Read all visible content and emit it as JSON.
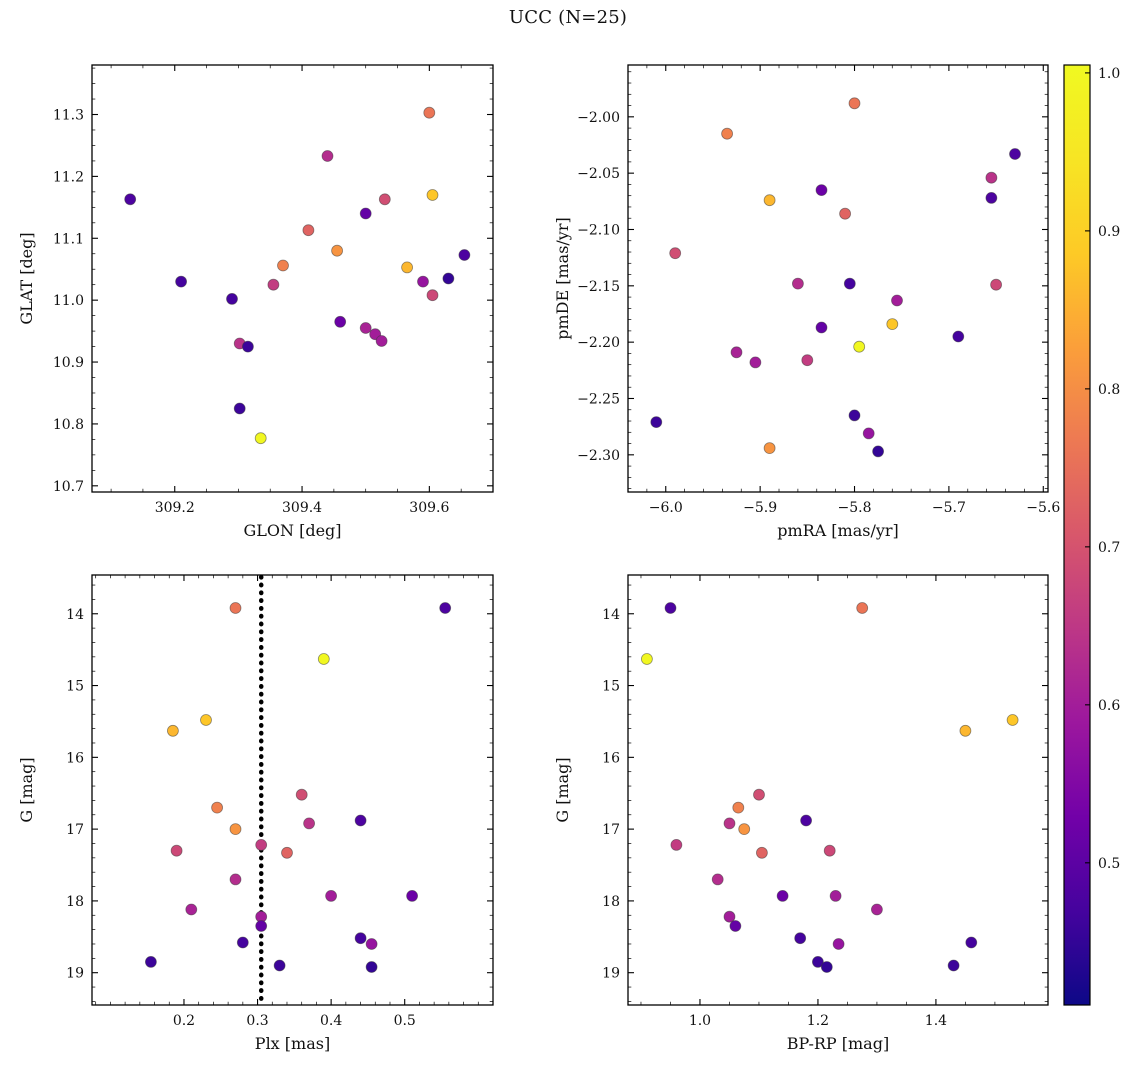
{
  "title": "UCC (N=25)",
  "chart_data": {
    "type": "scatter",
    "figure_title": "UCC (N=25)",
    "n_members": 25,
    "grid": "2x2",
    "colormap": "plasma",
    "color_field": "prob",
    "color_vmin": 0.41,
    "color_vmax": 1.005,
    "colorbar_position": "right",
    "colorbar_ticks": [
      "1.0",
      "0.9",
      "0.8",
      "0.7",
      "0.6",
      "0.5"
    ],
    "colorbar_tick_values": [
      1.0,
      0.9,
      0.8,
      0.7,
      0.6,
      0.5
    ],
    "panels": [
      {
        "id": "glon_glat",
        "xlabel": "GLON [deg]",
        "ylabel": "GLAT [deg]",
        "x_field": "glon",
        "y_field": "glat",
        "xlim": [
          309.07,
          309.7
        ],
        "ylim": [
          10.69,
          11.38
        ],
        "invert_y": false,
        "xticks": [
          309.2,
          309.4,
          309.6
        ],
        "xtick_labels": [
          "309.2",
          "309.4",
          "309.6"
        ],
        "yticks": [
          10.7,
          10.8,
          10.9,
          11.0,
          11.1,
          11.2,
          11.3
        ],
        "ytick_labels": [
          "10.7",
          "10.8",
          "10.9",
          "11.0",
          "11.1",
          "11.2",
          "11.3"
        ],
        "x_minor_step": 0.05,
        "y_minor_step": 0.025
      },
      {
        "id": "pm",
        "xlabel": "pmRA [mas/yr]",
        "ylabel": "pmDE [mas/yr]",
        "x_field": "pmra",
        "y_field": "pmde",
        "xlim": [
          -6.04,
          -5.595
        ],
        "ylim": [
          -2.333,
          -1.954
        ],
        "invert_y": false,
        "xticks": [
          -6.0,
          -5.9,
          -5.8,
          -5.7,
          -5.6
        ],
        "xtick_labels": [
          "−6.0",
          "−5.9",
          "−5.8",
          "−5.7",
          "−5.6"
        ],
        "yticks": [
          -2.3,
          -2.25,
          -2.2,
          -2.15,
          -2.1,
          -2.05,
          -2.0
        ],
        "ytick_labels": [
          "−2.30",
          "−2.25",
          "−2.20",
          "−2.15",
          "−2.10",
          "−2.05",
          "−2.00"
        ],
        "x_minor_step": 0.02,
        "y_minor_step": 0.01
      },
      {
        "id": "plx_g",
        "xlabel": "Plx [mas]",
        "ylabel": "G [mag]",
        "x_field": "plx",
        "y_field": "g",
        "xlim": [
          0.075,
          0.62
        ],
        "ylim": [
          13.46,
          19.45
        ],
        "invert_y": true,
        "xticks": [
          0.2,
          0.3,
          0.4,
          0.5
        ],
        "xtick_labels": [
          "0.2",
          "0.3",
          "0.4",
          "0.5"
        ],
        "yticks": [
          14,
          15,
          16,
          17,
          18,
          19
        ],
        "ytick_labels": [
          "14",
          "15",
          "16",
          "17",
          "18",
          "19"
        ],
        "x_minor_step": 0.02,
        "y_minor_step": 0.2,
        "vline": {
          "x": 0.305,
          "color": "#000000",
          "style": "dotted",
          "width": 4.5
        }
      },
      {
        "id": "cmd",
        "xlabel": "BP-RP [mag]",
        "ylabel": "G [mag]",
        "x_field": "bprp",
        "y_field": "g",
        "xlim": [
          0.878,
          1.59
        ],
        "ylim": [
          13.46,
          19.45
        ],
        "invert_y": true,
        "xticks": [
          1.0,
          1.2,
          1.4
        ],
        "xtick_labels": [
          "1.0",
          "1.2",
          "1.4"
        ],
        "yticks": [
          14,
          15,
          16,
          17,
          18,
          19
        ],
        "ytick_labels": [
          "14",
          "15",
          "16",
          "17",
          "18",
          "19"
        ],
        "x_minor_step": 0.05,
        "y_minor_step": 0.2
      }
    ],
    "stars": [
      {
        "glon": 309.335,
        "glat": 10.777,
        "pmra": -5.795,
        "pmde": -2.204,
        "plx": 0.39,
        "g": 14.63,
        "bprp": 0.91,
        "prob": 1.0
      },
      {
        "glon": 309.605,
        "glat": 11.17,
        "pmra": -5.76,
        "pmde": -2.184,
        "plx": 0.23,
        "g": 15.48,
        "bprp": 1.53,
        "prob": 0.88
      },
      {
        "glon": 309.565,
        "glat": 11.053,
        "pmra": -5.89,
        "pmde": -2.074,
        "plx": 0.185,
        "g": 15.63,
        "bprp": 1.45,
        "prob": 0.86
      },
      {
        "glon": 309.455,
        "glat": 11.08,
        "pmra": -5.89,
        "pmde": -2.294,
        "plx": 0.27,
        "g": 17.0,
        "bprp": 1.075,
        "prob": 0.81
      },
      {
        "glon": 309.37,
        "glat": 11.056,
        "pmra": -5.935,
        "pmde": -2.015,
        "plx": 0.245,
        "g": 16.7,
        "bprp": 1.065,
        "prob": 0.78
      },
      {
        "glon": 309.6,
        "glat": 11.303,
        "pmra": -5.8,
        "pmde": -1.988,
        "plx": 0.27,
        "g": 13.92,
        "bprp": 1.275,
        "prob": 0.76
      },
      {
        "glon": 309.41,
        "glat": 11.113,
        "pmra": -5.81,
        "pmde": -2.086,
        "plx": 0.34,
        "g": 17.33,
        "bprp": 1.105,
        "prob": 0.73
      },
      {
        "glon": 309.53,
        "glat": 11.163,
        "pmra": -5.99,
        "pmde": -2.121,
        "plx": 0.36,
        "g": 16.52,
        "bprp": 1.1,
        "prob": 0.69
      },
      {
        "glon": 309.605,
        "glat": 11.008,
        "pmra": -5.65,
        "pmde": -2.149,
        "plx": 0.19,
        "g": 17.3,
        "bprp": 1.22,
        "prob": 0.68
      },
      {
        "glon": 309.355,
        "glat": 11.025,
        "pmra": -5.85,
        "pmde": -2.216,
        "plx": 0.305,
        "g": 17.22,
        "bprp": 0.96,
        "prob": 0.66
      },
      {
        "glon": 309.302,
        "glat": 10.93,
        "pmra": -5.655,
        "pmde": -2.054,
        "plx": 0.37,
        "g": 16.92,
        "bprp": 1.05,
        "prob": 0.64
      },
      {
        "glon": 309.44,
        "glat": 11.233,
        "pmra": -5.86,
        "pmde": -2.148,
        "plx": 0.27,
        "g": 17.7,
        "bprp": 1.03,
        "prob": 0.63
      },
      {
        "glon": 309.5,
        "glat": 10.955,
        "pmra": -5.925,
        "pmde": -2.209,
        "plx": 0.21,
        "g": 18.12,
        "bprp": 1.3,
        "prob": 0.61
      },
      {
        "glon": 309.515,
        "glat": 10.945,
        "pmra": -5.905,
        "pmde": -2.218,
        "plx": 0.4,
        "g": 17.93,
        "bprp": 1.23,
        "prob": 0.6
      },
      {
        "glon": 309.525,
        "glat": 10.934,
        "pmra": -5.755,
        "pmde": -2.163,
        "plx": 0.305,
        "g": 18.22,
        "bprp": 1.05,
        "prob": 0.6
      },
      {
        "glon": 309.59,
        "glat": 11.03,
        "pmra": -5.785,
        "pmde": -2.281,
        "plx": 0.455,
        "g": 18.6,
        "bprp": 1.235,
        "prob": 0.58
      },
      {
        "glon": 309.46,
        "glat": 10.965,
        "pmra": -5.835,
        "pmde": -2.065,
        "plx": 0.51,
        "g": 17.93,
        "bprp": 1.14,
        "prob": 0.52
      },
      {
        "glon": 309.5,
        "glat": 11.14,
        "pmra": -5.835,
        "pmde": -2.187,
        "plx": 0.305,
        "g": 18.35,
        "bprp": 1.06,
        "prob": 0.51
      },
      {
        "glon": 309.13,
        "glat": 11.163,
        "pmra": -5.63,
        "pmde": -2.033,
        "plx": 0.555,
        "g": 13.92,
        "bprp": 0.95,
        "prob": 0.48
      },
      {
        "glon": 309.655,
        "glat": 11.073,
        "pmra": -5.655,
        "pmde": -2.072,
        "plx": 0.44,
        "g": 16.88,
        "bprp": 1.18,
        "prob": 0.48
      },
      {
        "glon": 309.21,
        "glat": 11.03,
        "pmra": -5.805,
        "pmde": -2.148,
        "plx": 0.44,
        "g": 18.52,
        "bprp": 1.17,
        "prob": 0.47
      },
      {
        "glon": 309.29,
        "glat": 11.002,
        "pmra": -5.69,
        "pmde": -2.195,
        "plx": 0.28,
        "g": 18.58,
        "bprp": 1.46,
        "prob": 0.47
      },
      {
        "glon": 309.315,
        "glat": 10.925,
        "pmra": -6.01,
        "pmde": -2.271,
        "plx": 0.155,
        "g": 18.85,
        "bprp": 1.2,
        "prob": 0.46
      },
      {
        "glon": 309.302,
        "glat": 10.825,
        "pmra": -5.8,
        "pmde": -2.265,
        "plx": 0.33,
        "g": 18.9,
        "bprp": 1.43,
        "prob": 0.46
      },
      {
        "glon": 309.63,
        "glat": 11.035,
        "pmra": -5.775,
        "pmde": -2.297,
        "plx": 0.455,
        "g": 18.92,
        "bprp": 1.215,
        "prob": 0.45
      }
    ]
  }
}
